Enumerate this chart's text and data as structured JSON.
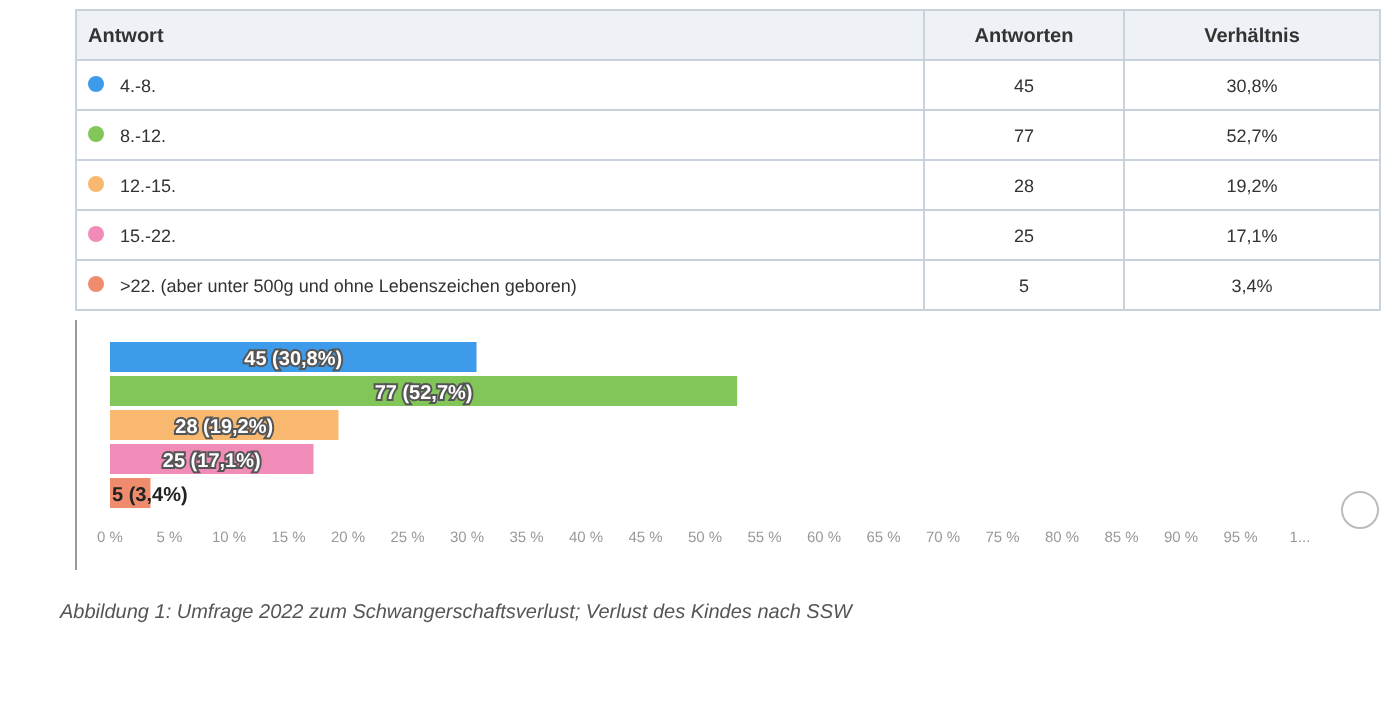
{
  "chart_data": [
    {
      "type": "other",
      "xlabel": "Antwort",
      "categories": [
        "4.-8.",
        "8.-12.",
        "12.-15.",
        "15.-22.",
        ">22. (aber unter 500g und ohne Lebenszeichen geboren)"
      ],
      "colors": [
        "#3d9be9",
        "#82c65a",
        "#f9b870",
        "#f18bb8",
        "#f08c6e"
      ],
      "data_labels": true,
      "series": [
        {
          "name": "Antworten",
          "values": [
            45,
            77,
            28,
            25,
            5
          ]
        },
        {
          "name": "Verhältnis",
          "values": [
            30.8,
            52.7,
            19.2,
            17.1,
            3.4
          ],
          "value_labels": [
            "30,8%",
            "52,7%",
            "19,2%",
            "17,1%",
            "3,4%"
          ]
        }
      ]
    },
    {
      "type": "bar",
      "orientation": "horizontal",
      "categories": [
        null,
        null,
        null,
        null,
        null
      ],
      "values": [
        30.8,
        52.7,
        19.2,
        17.1,
        3.4
      ],
      "colors": [
        "#3d9be9",
        "#82c65a",
        "#f9b870",
        "#f18bb8",
        "#f08c6e"
      ],
      "value_labels": [
        "45 (30,8%)",
        "77 (52,7%)",
        "28 (19,2%)",
        "25 (17,1%)",
        "5 (3,4%)"
      ],
      "annotations": [
        "Abbildung 1: Umfrage 2022 zum Schwangerschaftsverlust; Verlust des Kindes nach SSW"
      ],
      "xlim": [
        0,
        100
      ],
      "xticks": [
        {
          "value": 0,
          "label": "0 %"
        },
        {
          "value": 5,
          "label": "5 %"
        },
        {
          "value": 10,
          "label": "10 %"
        },
        {
          "value": 15,
          "label": "15 %"
        },
        {
          "value": 20,
          "label": "20 %"
        },
        {
          "value": 25,
          "label": "25 %"
        },
        {
          "value": 30,
          "label": "30 %"
        },
        {
          "value": 35,
          "label": "35 %"
        },
        {
          "value": 40,
          "label": "40 %"
        },
        {
          "value": 45,
          "label": "45 %"
        },
        {
          "value": 50,
          "label": "50 %"
        },
        {
          "value": 55,
          "label": "55 %"
        },
        {
          "value": 60,
          "label": "60 %"
        },
        {
          "value": 65,
          "label": "65 %"
        },
        {
          "value": 70,
          "label": "70 %"
        },
        {
          "value": 75,
          "label": "75 %"
        },
        {
          "value": 80,
          "label": "80 %"
        },
        {
          "value": 85,
          "label": "85 %"
        },
        {
          "value": 90,
          "label": "90 %"
        },
        {
          "value": 95,
          "label": "95 %"
        },
        {
          "value": 100,
          "label": "1..."
        }
      ]
    }
  ]
}
